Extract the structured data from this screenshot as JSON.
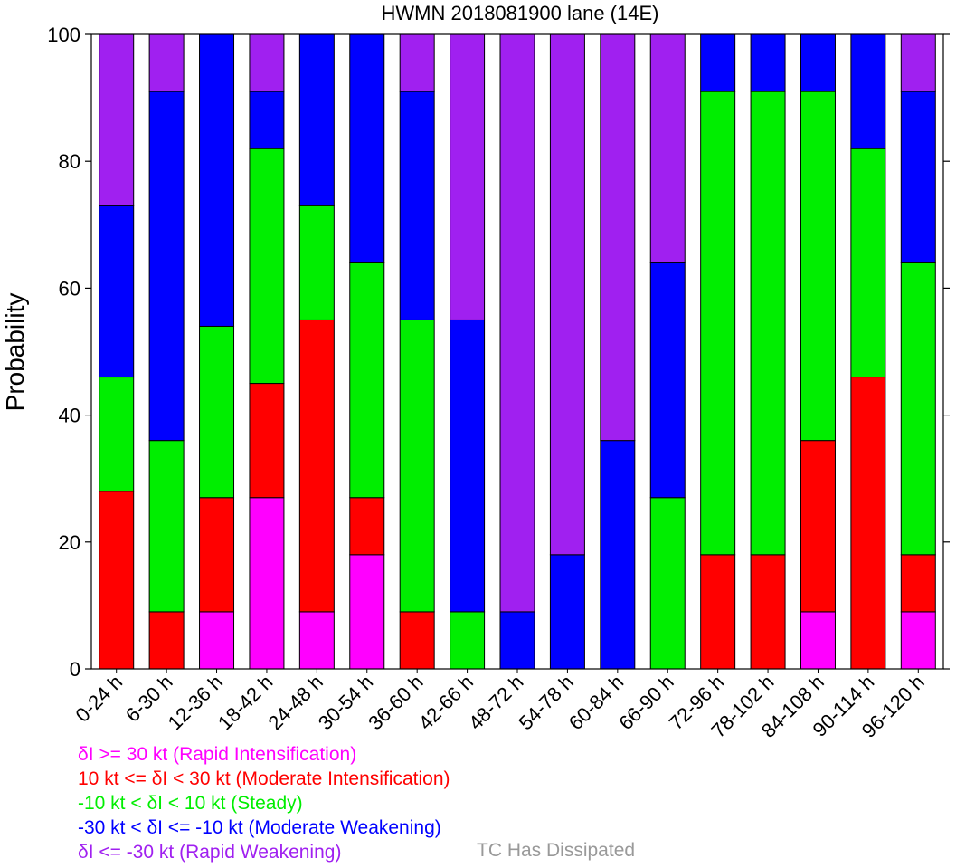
{
  "chart_data": {
    "type": "bar",
    "stacked": true,
    "title": "HWMN 2018081900 lane (14E)",
    "xlabel": "",
    "ylabel": "Probability",
    "ylim": [
      0,
      100
    ],
    "yticks": [
      0,
      20,
      40,
      60,
      80,
      100
    ],
    "categories": [
      "0-24 h",
      "6-30 h",
      "12-36 h",
      "18-42 h",
      "24-48 h",
      "30-54 h",
      "36-60 h",
      "42-66 h",
      "48-72 h",
      "54-78 h",
      "60-84 h",
      "66-90 h",
      "72-96 h",
      "78-102 h",
      "84-108 h",
      "90-114 h",
      "96-120 h"
    ],
    "series": [
      {
        "name": "Rapid Intensification",
        "color": "#ff00ff",
        "values": [
          0,
          0,
          9,
          27,
          9,
          18,
          0,
          0,
          0,
          0,
          0,
          0,
          0,
          0,
          9,
          0,
          9
        ]
      },
      {
        "name": "Moderate Intensification",
        "color": "#ff0000",
        "values": [
          28,
          9,
          18,
          18,
          46,
          9,
          9,
          0,
          0,
          0,
          0,
          0,
          18,
          18,
          27,
          46,
          9
        ]
      },
      {
        "name": "Steady",
        "color": "#00ee00",
        "values": [
          18,
          27,
          27,
          37,
          18,
          37,
          46,
          9,
          0,
          0,
          0,
          27,
          73,
          73,
          55,
          36,
          46
        ]
      },
      {
        "name": "Moderate Weakening",
        "color": "#0000ff",
        "values": [
          27,
          55,
          46,
          9,
          27,
          36,
          36,
          46,
          9,
          18,
          36,
          37,
          9,
          9,
          9,
          18,
          27
        ]
      },
      {
        "name": "Rapid Weakening",
        "color": "#a020f0",
        "values": [
          27,
          9,
          0,
          9,
          0,
          0,
          9,
          45,
          91,
          82,
          64,
          36,
          0,
          0,
          0,
          0,
          9
        ]
      }
    ]
  },
  "legend": [
    {
      "text": "δI >= 30 kt (Rapid Intensification)",
      "color": "#ff00ff"
    },
    {
      "text": "10 kt <= δI < 30 kt (Moderate Intensification)",
      "color": "#ff0000"
    },
    {
      "text": "-10 kt < δI < 10 kt (Steady)",
      "color": "#00ee00"
    },
    {
      "text": "-30 kt < δI <= -10 kt (Moderate Weakening)",
      "color": "#0000ff"
    },
    {
      "text": "δI <= -30 kt (Rapid Weakening)",
      "color": "#a020f0"
    }
  ],
  "dissipated_label": {
    "text": "TC Has Dissipated",
    "color": "#999999"
  }
}
